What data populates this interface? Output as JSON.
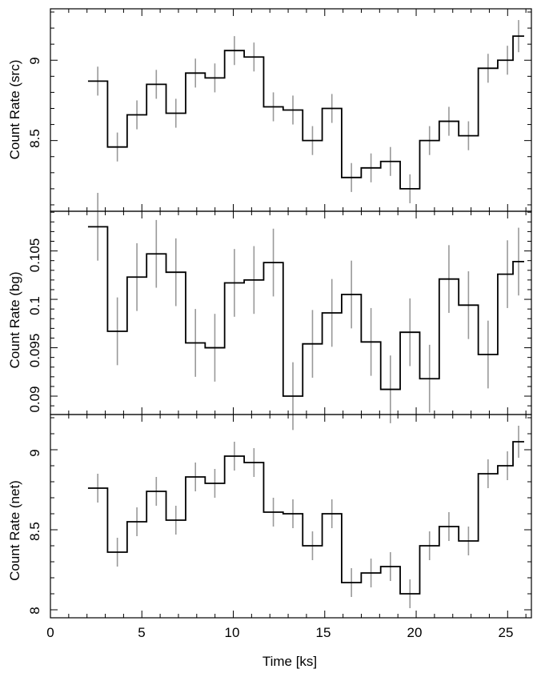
{
  "chart_data": [
    {
      "type": "line",
      "step": true,
      "title": "",
      "xlabel": "",
      "ylabel": "Count Rate (src)",
      "xlim": [
        0,
        26.3
      ],
      "ylim": [
        8.06,
        9.32
      ],
      "yticks_major": [
        8.5,
        9
      ],
      "ytick_labels": [
        "8.5",
        "9"
      ],
      "yticks_minor_step": 0.1,
      "grid": false,
      "series": [
        {
          "bin_centers": [
            2.59,
            3.66,
            4.73,
            5.79,
            6.86,
            7.93,
            8.99,
            10.06,
            11.13,
            12.19,
            13.26,
            14.33,
            15.39,
            16.46,
            17.53,
            18.59,
            19.66,
            20.73,
            21.79,
            22.86,
            23.93,
            24.99,
            25.6
          ],
          "values": [
            8.87,
            8.46,
            8.66,
            8.85,
            8.67,
            8.92,
            8.89,
            9.06,
            9.02,
            8.71,
            8.69,
            8.5,
            8.7,
            8.27,
            8.33,
            8.37,
            8.2,
            8.5,
            8.62,
            8.53,
            8.95,
            9.0,
            9.15
          ],
          "errors": [
            0.09,
            0.09,
            0.09,
            0.09,
            0.09,
            0.09,
            0.09,
            0.09,
            0.09,
            0.09,
            0.09,
            0.09,
            0.09,
            0.09,
            0.09,
            0.09,
            0.09,
            0.09,
            0.09,
            0.09,
            0.09,
            0.09,
            0.1
          ]
        }
      ]
    },
    {
      "type": "line",
      "step": true,
      "title": "",
      "xlabel": "",
      "ylabel": "Count Rate (bg)",
      "xlim": [
        0,
        26.3
      ],
      "ylim": [
        0.0881,
        0.1091
      ],
      "yticks_major": [
        0.09,
        0.095,
        0.1,
        0.105
      ],
      "ytick_labels": [
        "0.09",
        "0.095",
        "0.1",
        "0.105"
      ],
      "yticks_minor_step": 0.001,
      "grid": false,
      "series": [
        {
          "bin_centers": [
            2.59,
            3.66,
            4.73,
            5.79,
            6.86,
            7.93,
            8.99,
            10.06,
            11.13,
            12.19,
            13.26,
            14.33,
            15.39,
            16.46,
            17.53,
            18.59,
            19.66,
            20.73,
            21.79,
            22.86,
            23.93,
            24.99,
            25.6
          ],
          "values": [
            0.1075,
            0.0967,
            0.1023,
            0.1047,
            0.1028,
            0.0955,
            0.095,
            0.1017,
            0.102,
            0.1038,
            0.09,
            0.0954,
            0.0986,
            0.1005,
            0.0956,
            0.0907,
            0.0966,
            0.0918,
            0.1021,
            0.0994,
            0.0943,
            0.1026,
            0.1039
          ],
          "errors": [
            0.0035,
            0.0035,
            0.0035,
            0.0035,
            0.0035,
            0.0035,
            0.0035,
            0.0035,
            0.0035,
            0.0035,
            0.0035,
            0.0035,
            0.0035,
            0.0035,
            0.0035,
            0.0035,
            0.0035,
            0.0035,
            0.0035,
            0.0035,
            0.0035,
            0.0035,
            0.0035
          ]
        }
      ]
    },
    {
      "type": "line",
      "step": true,
      "title": "",
      "xlabel": "Time [ks]",
      "ylabel": "Count Rate (net)",
      "xlim": [
        0,
        26.3
      ],
      "xticks_major": [
        0,
        5,
        10,
        15,
        20,
        25
      ],
      "xtick_labels": [
        "0",
        "5",
        "10",
        "15",
        "20",
        "25"
      ],
      "xticks_minor_step": 1,
      "ylim": [
        7.95,
        9.22
      ],
      "yticks_major": [
        8,
        8.5,
        9
      ],
      "ytick_labels": [
        "8",
        "8.5",
        "9"
      ],
      "yticks_minor_step": 0.1,
      "grid": false,
      "series": [
        {
          "bin_centers": [
            2.59,
            3.66,
            4.73,
            5.79,
            6.86,
            7.93,
            8.99,
            10.06,
            11.13,
            12.19,
            13.26,
            14.33,
            15.39,
            16.46,
            17.53,
            18.59,
            19.66,
            20.73,
            21.79,
            22.86,
            23.93,
            24.99,
            25.6
          ],
          "values": [
            8.76,
            8.36,
            8.55,
            8.74,
            8.56,
            8.83,
            8.79,
            8.96,
            8.92,
            8.61,
            8.6,
            8.4,
            8.6,
            8.17,
            8.23,
            8.27,
            8.1,
            8.4,
            8.52,
            8.43,
            8.85,
            8.9,
            9.05
          ],
          "errors": [
            0.09,
            0.09,
            0.09,
            0.09,
            0.09,
            0.09,
            0.09,
            0.09,
            0.09,
            0.09,
            0.09,
            0.09,
            0.09,
            0.09,
            0.09,
            0.09,
            0.09,
            0.09,
            0.09,
            0.09,
            0.09,
            0.09,
            0.1
          ]
        }
      ]
    }
  ],
  "colors": {
    "step_line": "#000000",
    "error_bar": "#999999",
    "frame": "#000000",
    "background": "#ffffff"
  }
}
